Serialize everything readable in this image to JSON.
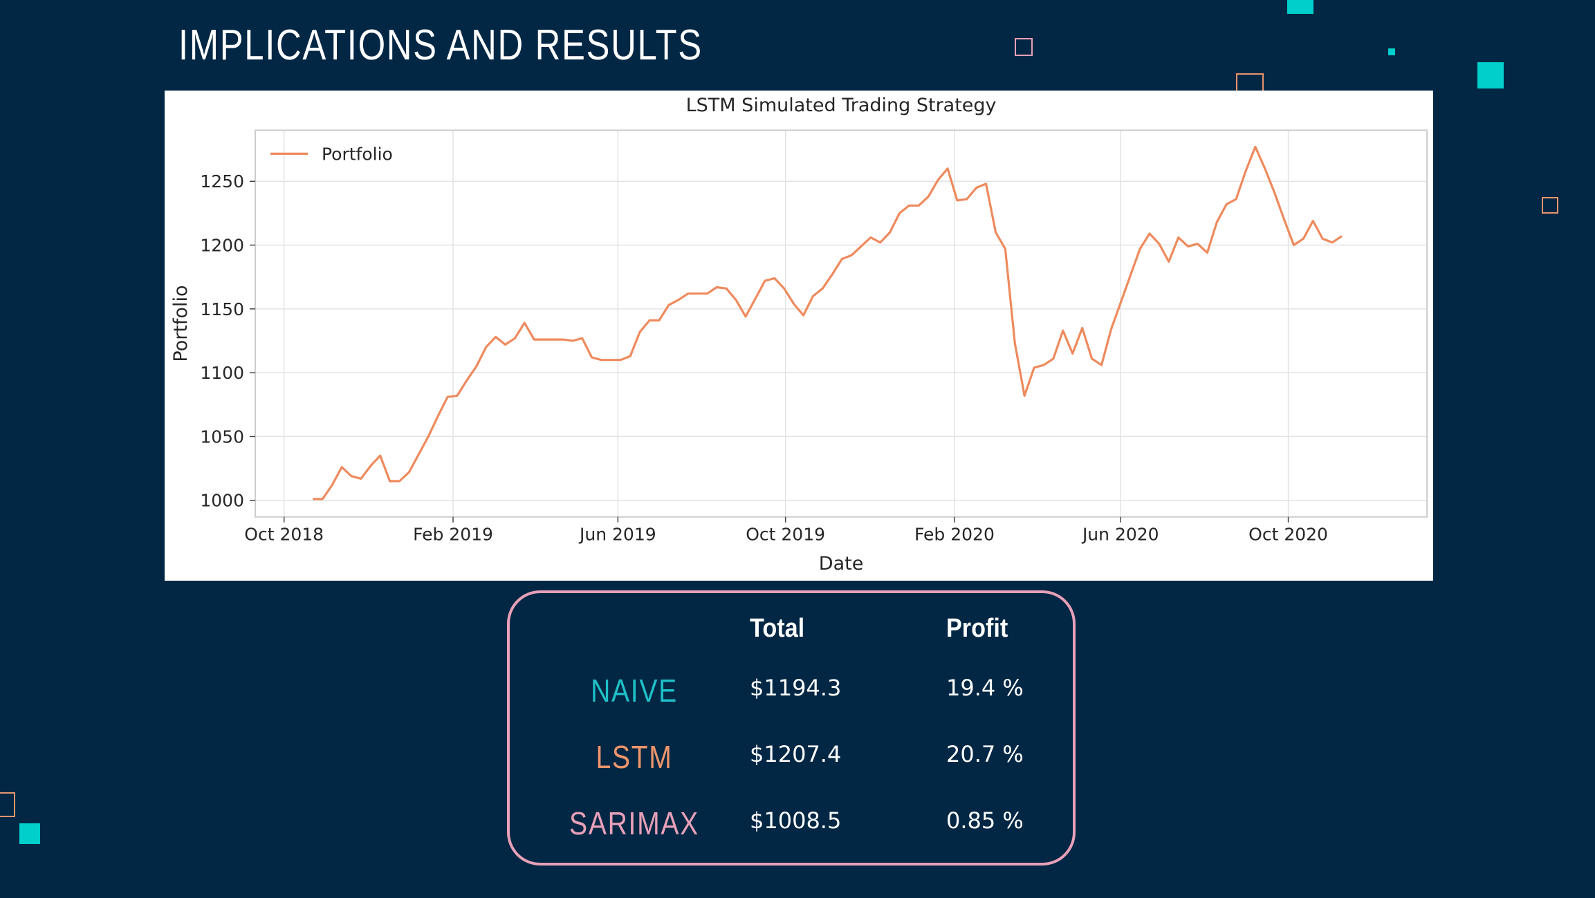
{
  "slide": {
    "title": "IMPLICATIONS AND RESULTS"
  },
  "colors": {
    "background": "#012744",
    "accent_cyan": "#00cfcc",
    "line": "#ee8a5d",
    "naive": "#1fc0c6",
    "lstm": "#f0956a",
    "sarimax": "#e8a0b8",
    "box_border": "#e8a0b8"
  },
  "chart_data": {
    "type": "line",
    "title": "LSTM Simulated Trading Strategy",
    "xlabel": "Date",
    "ylabel": "Portfolio",
    "legend": {
      "position": "top-left",
      "entries": [
        "Portfolio"
      ]
    },
    "grid": true,
    "xlim": [
      "2018-09-10",
      "2021-01-10"
    ],
    "ylim": [
      987,
      1290
    ],
    "x_ticks": [
      {
        "date": "2018-10-01",
        "label": "Oct 2018"
      },
      {
        "date": "2019-02-01",
        "label": "Feb 2019"
      },
      {
        "date": "2019-06-01",
        "label": "Jun 2019"
      },
      {
        "date": "2019-10-01",
        "label": "Oct 2019"
      },
      {
        "date": "2020-02-01",
        "label": "Feb 2020"
      },
      {
        "date": "2020-06-01",
        "label": "Jun 2020"
      },
      {
        "date": "2020-10-01",
        "label": "Oct 2020"
      }
    ],
    "y_ticks": [
      1000,
      1050,
      1100,
      1150,
      1200,
      1250
    ],
    "series": [
      {
        "name": "Portfolio",
        "x": [
          "2018-10-22",
          "2018-10-29",
          "2018-11-05",
          "2018-11-12",
          "2018-11-19",
          "2018-11-26",
          "2018-12-03",
          "2018-12-10",
          "2018-12-17",
          "2018-12-24",
          "2018-12-31",
          "2019-01-07",
          "2019-01-14",
          "2019-01-21",
          "2019-01-28",
          "2019-02-04",
          "2019-02-11",
          "2019-02-18",
          "2019-02-25",
          "2019-03-04",
          "2019-03-11",
          "2019-03-18",
          "2019-03-25",
          "2019-04-01",
          "2019-04-08",
          "2019-04-15",
          "2019-04-22",
          "2019-04-29",
          "2019-05-06",
          "2019-05-13",
          "2019-05-20",
          "2019-05-27",
          "2019-06-03",
          "2019-06-10",
          "2019-06-17",
          "2019-06-24",
          "2019-07-01",
          "2019-07-08",
          "2019-07-15",
          "2019-07-22",
          "2019-07-29",
          "2019-08-05",
          "2019-08-12",
          "2019-08-19",
          "2019-08-26",
          "2019-09-02",
          "2019-09-09",
          "2019-09-16",
          "2019-09-23",
          "2019-09-30",
          "2019-10-07",
          "2019-10-14",
          "2019-10-21",
          "2019-10-28",
          "2019-11-04",
          "2019-11-11",
          "2019-11-18",
          "2019-11-25",
          "2019-12-02",
          "2019-12-09",
          "2019-12-16",
          "2019-12-23",
          "2019-12-30",
          "2020-01-06",
          "2020-01-13",
          "2020-01-20",
          "2020-01-27",
          "2020-02-03",
          "2020-02-10",
          "2020-02-17",
          "2020-02-24",
          "2020-03-02",
          "2020-03-09",
          "2020-03-16",
          "2020-03-23",
          "2020-03-30",
          "2020-04-06",
          "2020-04-13",
          "2020-04-20",
          "2020-04-27",
          "2020-05-04",
          "2020-05-11",
          "2020-05-18",
          "2020-05-25",
          "2020-06-01",
          "2020-06-08",
          "2020-06-15",
          "2020-06-22",
          "2020-06-29",
          "2020-07-06",
          "2020-07-13",
          "2020-07-20",
          "2020-07-27",
          "2020-08-03",
          "2020-08-10",
          "2020-08-17",
          "2020-08-24",
          "2020-08-31",
          "2020-09-07",
          "2020-09-14",
          "2020-09-21",
          "2020-09-28",
          "2020-10-05",
          "2020-10-12",
          "2020-10-19",
          "2020-10-26",
          "2020-11-02",
          "2020-11-09"
        ],
        "values": [
          1001,
          1001,
          1012,
          1026,
          1019,
          1017,
          1027,
          1035,
          1015,
          1015,
          1022,
          1036,
          1050,
          1066,
          1081,
          1082,
          1094,
          1105,
          1120,
          1128,
          1122,
          1127,
          1139,
          1126,
          1126,
          1126,
          1126,
          1125,
          1127,
          1112,
          1110,
          1110,
          1110,
          1113,
          1132,
          1141,
          1141,
          1153,
          1157,
          1162,
          1162,
          1162,
          1167,
          1166,
          1157,
          1144,
          1158,
          1172,
          1174,
          1166,
          1154,
          1145,
          1160,
          1166,
          1177,
          1189,
          1192,
          1199,
          1206,
          1202,
          1210,
          1225,
          1231,
          1231,
          1238,
          1251,
          1260,
          1235,
          1236,
          1245,
          1248,
          1210,
          1197,
          1123,
          1082,
          1104,
          1106,
          1111,
          1133,
          1115,
          1135,
          1111,
          1106,
          1134,
          1155,
          1176,
          1197,
          1209,
          1201,
          1187,
          1206,
          1199,
          1201,
          1194,
          1218,
          1232,
          1236,
          1258,
          1277,
          1260,
          1241,
          1220,
          1200,
          1205,
          1219,
          1205,
          1202,
          1207
        ]
      }
    ]
  },
  "results_table": {
    "headers": [
      "Total",
      "Profit"
    ],
    "rows": [
      {
        "model": "NAIVE",
        "total": "$1194.3",
        "profit": "19.4 %"
      },
      {
        "model": "LSTM",
        "total": "$1207.4",
        "profit": "20.7 %"
      },
      {
        "model": "SARIMAX",
        "total": "$1008.5",
        "profit": "0.85 %"
      }
    ]
  }
}
